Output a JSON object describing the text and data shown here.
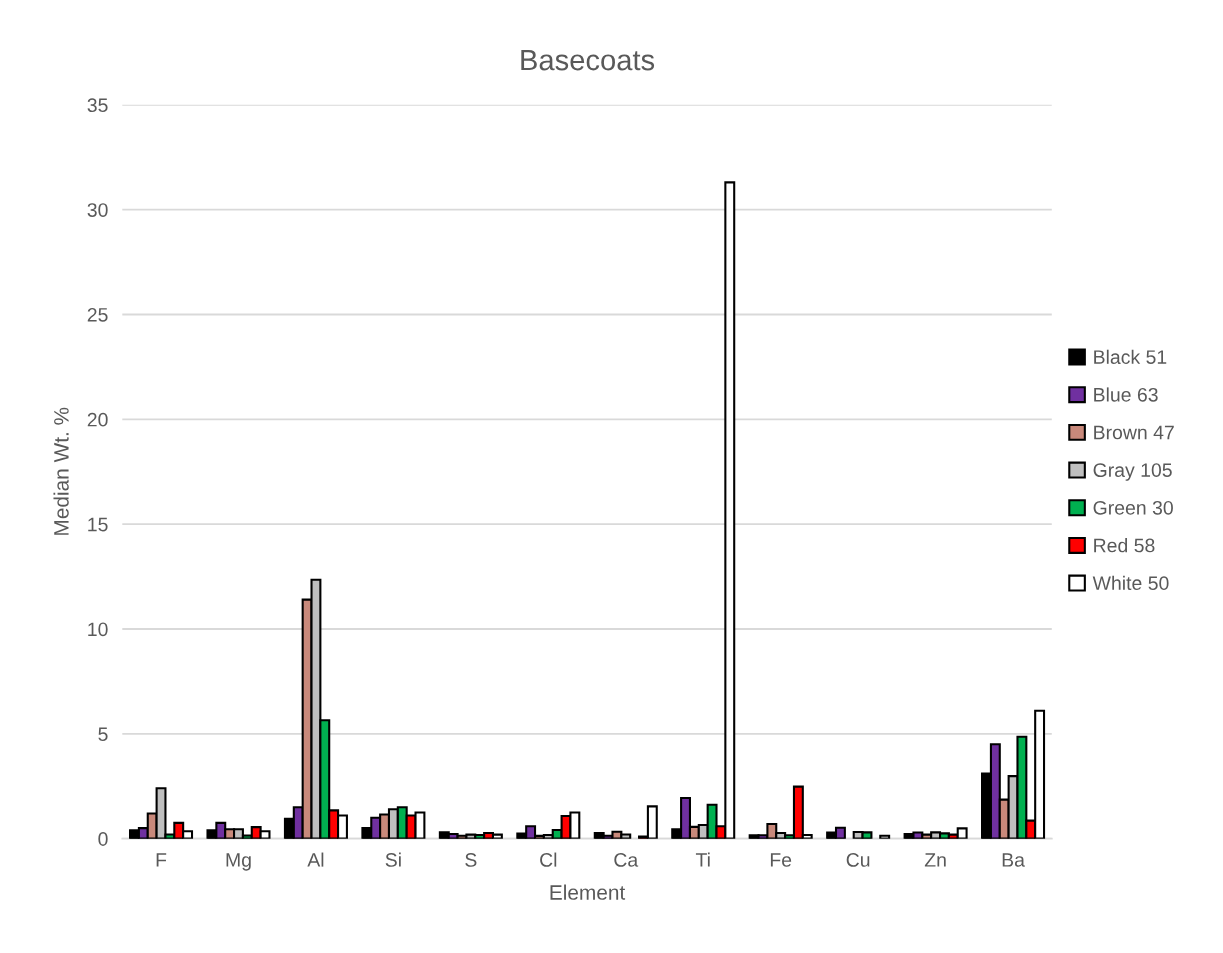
{
  "chart_data": {
    "type": "bar",
    "title": "Basecoats",
    "xlabel": "Element",
    "ylabel": "Median Wt. %",
    "categories": [
      "F",
      "Mg",
      "Al",
      "Si",
      "S",
      "Cl",
      "Ca",
      "Ti",
      "Fe",
      "Cu",
      "Zn",
      "Ba"
    ],
    "series": [
      {
        "name": "Black 51",
        "color": "#000000",
        "values": [
          0.4,
          0.4,
          0.95,
          0.5,
          0.3,
          0.24,
          0.27,
          0.44,
          0.16,
          0.29,
          0.22,
          3.1
        ]
      },
      {
        "name": "Blue 63",
        "color": "#7030a0",
        "values": [
          0.5,
          0.75,
          1.5,
          1.0,
          0.22,
          0.59,
          0.14,
          1.94,
          0.16,
          0.52,
          0.29,
          4.5
        ]
      },
      {
        "name": "Brown 47",
        "color": "#c9897b",
        "values": [
          1.2,
          0.45,
          11.4,
          1.15,
          0.14,
          0.13,
          0.33,
          0.56,
          0.7,
          null,
          0.19,
          1.86
        ]
      },
      {
        "name": "Gray 105",
        "color": "#bfbfbf",
        "values": [
          2.4,
          0.45,
          12.35,
          1.4,
          0.19,
          0.17,
          0.2,
          0.65,
          0.27,
          0.32,
          0.3,
          2.98
        ]
      },
      {
        "name": "Green 30",
        "color": "#00b050",
        "values": [
          0.2,
          0.15,
          5.65,
          1.5,
          0.17,
          0.41,
          null,
          1.62,
          0.16,
          0.3,
          0.25,
          4.86
        ]
      },
      {
        "name": "Red 58",
        "color": "#ff0000",
        "values": [
          0.75,
          0.55,
          1.35,
          1.1,
          0.27,
          1.08,
          0.1,
          0.59,
          2.48,
          null,
          0.19,
          0.86
        ]
      },
      {
        "name": "White 50",
        "color": "#ffffff",
        "values": [
          0.35,
          0.35,
          1.1,
          1.25,
          0.19,
          1.25,
          1.54,
          31.3,
          0.17,
          0.14,
          0.49,
          6.1
        ]
      }
    ],
    "ylim": [
      0,
      35
    ],
    "yticks": [
      0,
      5,
      10,
      15,
      20,
      25,
      30,
      35
    ],
    "grid": "y",
    "legend": "right"
  }
}
